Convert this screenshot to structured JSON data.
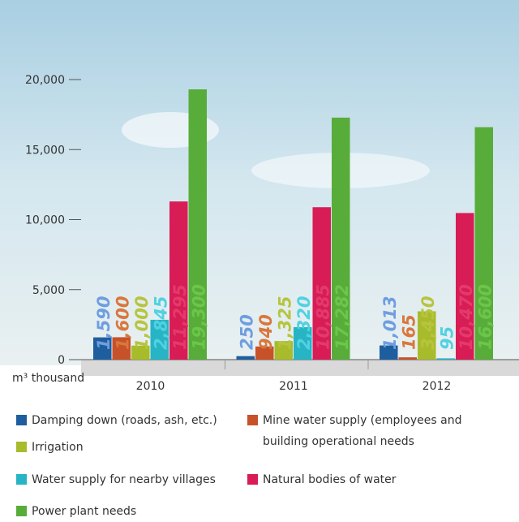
{
  "chart_data": {
    "type": "bar",
    "y_label": "m³ thousand",
    "categories": [
      "2010",
      "2011",
      "2012"
    ],
    "ylim": [
      0,
      20000
    ],
    "yticks": [
      0,
      {
        "value": 5000,
        "label": "5,000"
      },
      {
        "value": 10000,
        "label": "10,000"
      },
      {
        "value": 15000,
        "label": "15,000"
      },
      {
        "value": 20000,
        "label": "20,000"
      }
    ],
    "series": [
      {
        "name": "Damping down (roads, ash, etc.)",
        "color": "#1f5e9e",
        "label_color": "#6f9ee0",
        "values": [
          1590,
          250,
          1013
        ],
        "value_labels": [
          "1,590",
          "250",
          "1,013"
        ]
      },
      {
        "name": "Mine water supply (employees and building operational needs",
        "color": "#c7522a",
        "label_color": "#d9773c",
        "values": [
          1600,
          940,
          165
        ],
        "value_labels": [
          "1,600",
          "940",
          "165"
        ]
      },
      {
        "name": "Irrigation",
        "color": "#a8bb2b",
        "label_color": "#b7c43e",
        "values": [
          1000,
          1325,
          3450
        ],
        "value_labels": [
          "1,000",
          "1,325",
          "3,450"
        ]
      },
      {
        "name": "Water supply for nearby villages",
        "color": "#27b4c5",
        "label_color": "#50d2e2",
        "values": [
          2845,
          2320,
          95
        ],
        "value_labels": [
          "2,845",
          "2,320",
          "95"
        ]
      },
      {
        "name": "Natural bodies of water",
        "color": "#d81c55",
        "label_color": "#e33a6c",
        "values": [
          11295,
          10885,
          10470
        ],
        "value_labels": [
          "11,295",
          "10,885",
          "10,470"
        ]
      },
      {
        "name": "Power plant needs",
        "color": "#58ad3a",
        "label_color": "#6cc64a",
        "values": [
          19300,
          17282,
          16600
        ],
        "value_labels": [
          "19,300",
          "17,282",
          "16,600"
        ]
      }
    ]
  }
}
